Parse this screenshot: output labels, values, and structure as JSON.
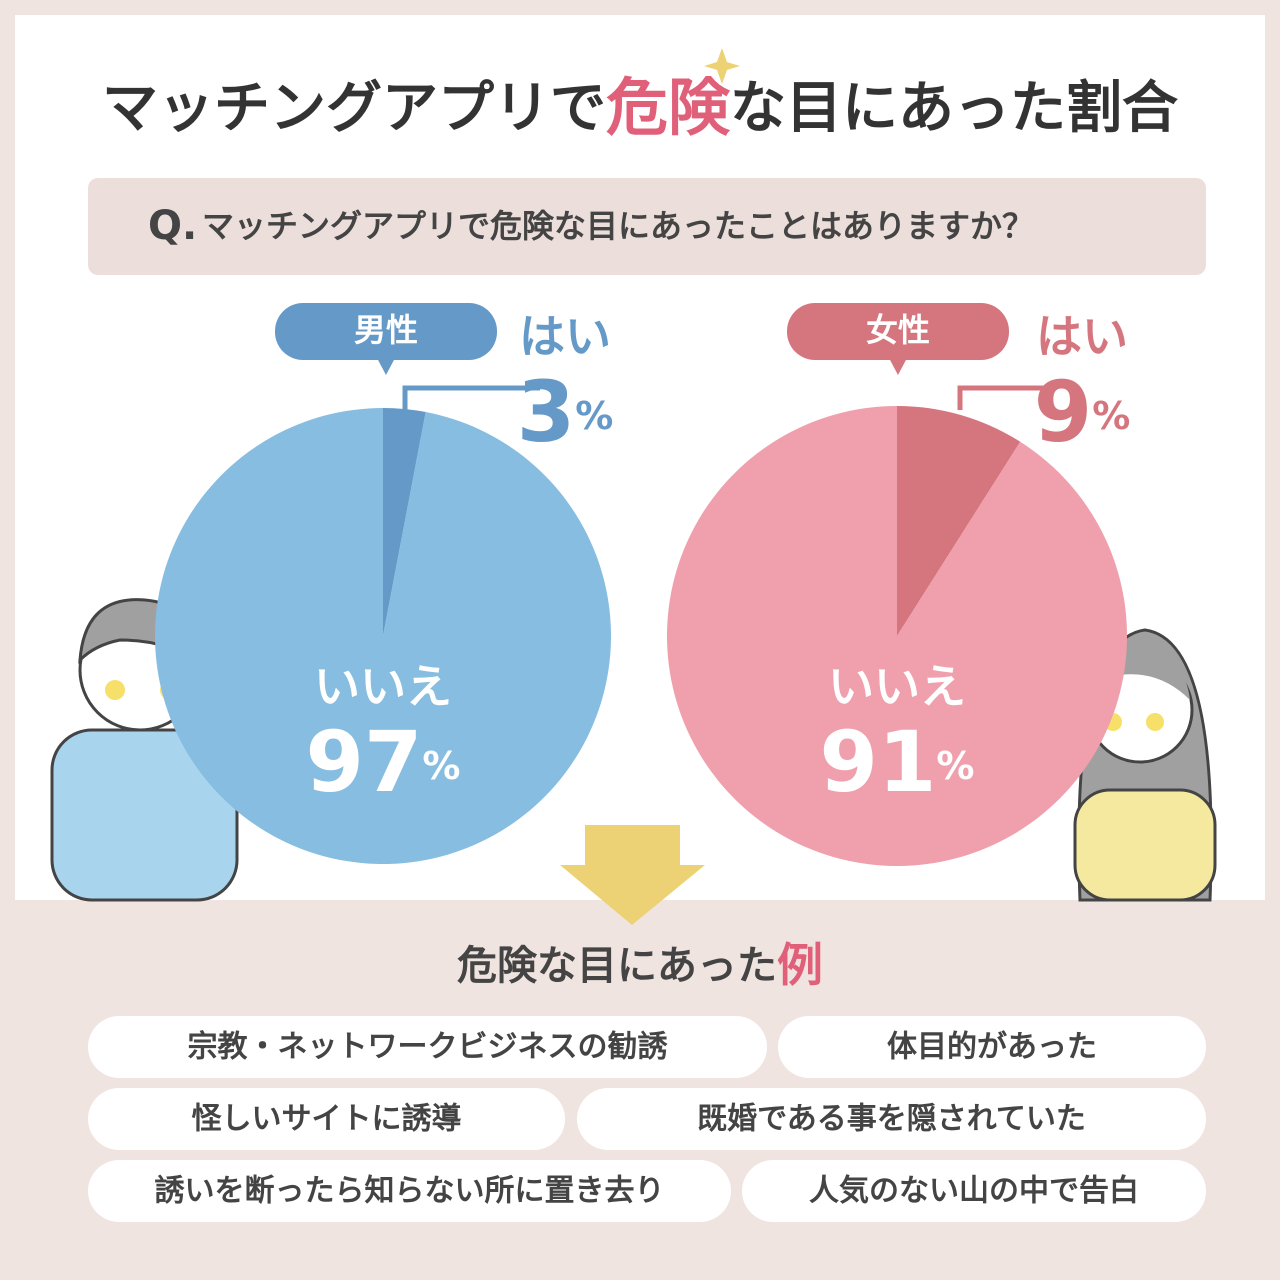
{
  "header": {
    "title_parts": [
      "マッチングアプリで",
      "危険",
      "な目にあった割合"
    ]
  },
  "question": {
    "prefix": "Q.",
    "text": "マッチングアプリで危険な目にあったことはありますか？"
  },
  "chart_data": [
    {
      "type": "pie",
      "title": "男性",
      "title_color": "#6499c8",
      "categories": [
        "はい",
        "いいえ"
      ],
      "values": [
        3,
        97
      ],
      "value_labels": [
        "3%",
        "97%"
      ],
      "colors": [
        "#6499c8",
        "#86bde0"
      ]
    },
    {
      "type": "pie",
      "title": "女性",
      "title_color": "#d5767e",
      "categories": [
        "はい",
        "いいえ"
      ],
      "values": [
        9,
        91
      ],
      "value_labels": [
        "9%",
        "91%"
      ],
      "colors": [
        "#d5767e",
        "#efa0ac"
      ]
    }
  ],
  "examples": {
    "heading_parts": [
      "危険な目にあった",
      "例"
    ],
    "items": [
      "宗教・ネットワークビジネスの勧誘",
      "体目的があった",
      "怪しいサイトに誘導",
      "既婚である事を隠されていた",
      "誘いを断ったら知らない所に置き去り",
      "人気のない山の中で告白"
    ]
  }
}
